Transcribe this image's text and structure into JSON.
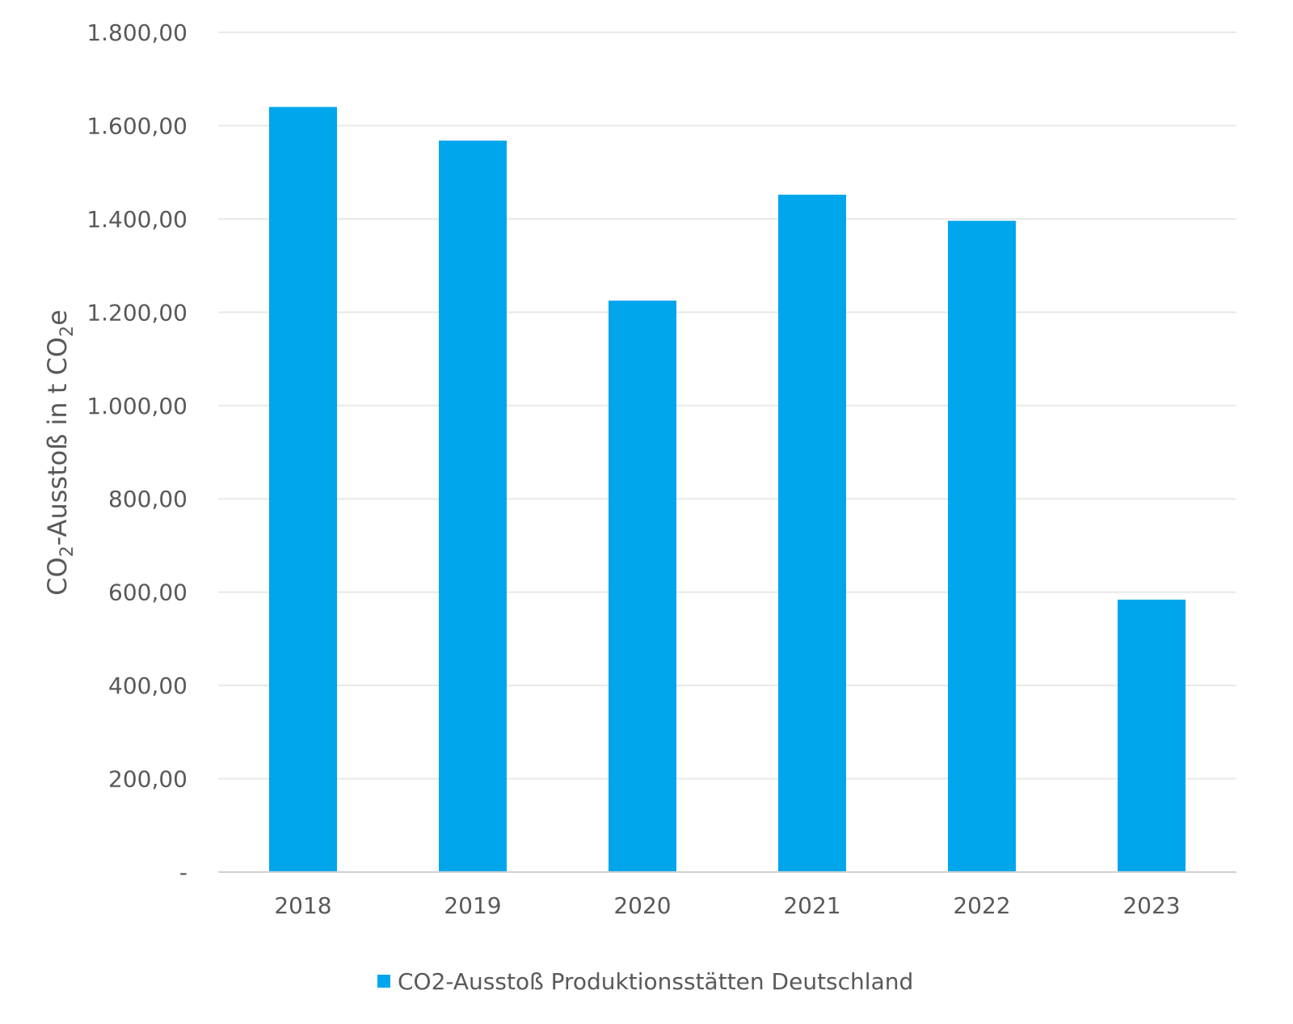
{
  "chart_data": {
    "type": "bar",
    "categories": [
      "2018",
      "2019",
      "2020",
      "2021",
      "2022",
      "2023"
    ],
    "series": [
      {
        "name": "CO2-Ausstoß Produktionsstätten Deutschland",
        "values": [
          1640,
          1568,
          1225,
          1452,
          1396,
          584
        ]
      }
    ],
    "ylabel_parts": [
      "CO",
      "2",
      "-Ausstoß in t CO",
      "2",
      "e"
    ],
    "ylim": [
      0,
      1800
    ],
    "yticks": [
      0,
      200,
      400,
      600,
      800,
      1000,
      1200,
      1400,
      1600,
      1800
    ],
    "ytick_labels": [
      "-",
      "200,00",
      "400,00",
      "600,00",
      "800,00",
      "1.000,00",
      "1.200,00",
      "1.400,00",
      "1.600,00",
      "1.800,00"
    ],
    "grid": true,
    "legend_position": "bottom-center",
    "bar_color": "#00a6eb"
  }
}
